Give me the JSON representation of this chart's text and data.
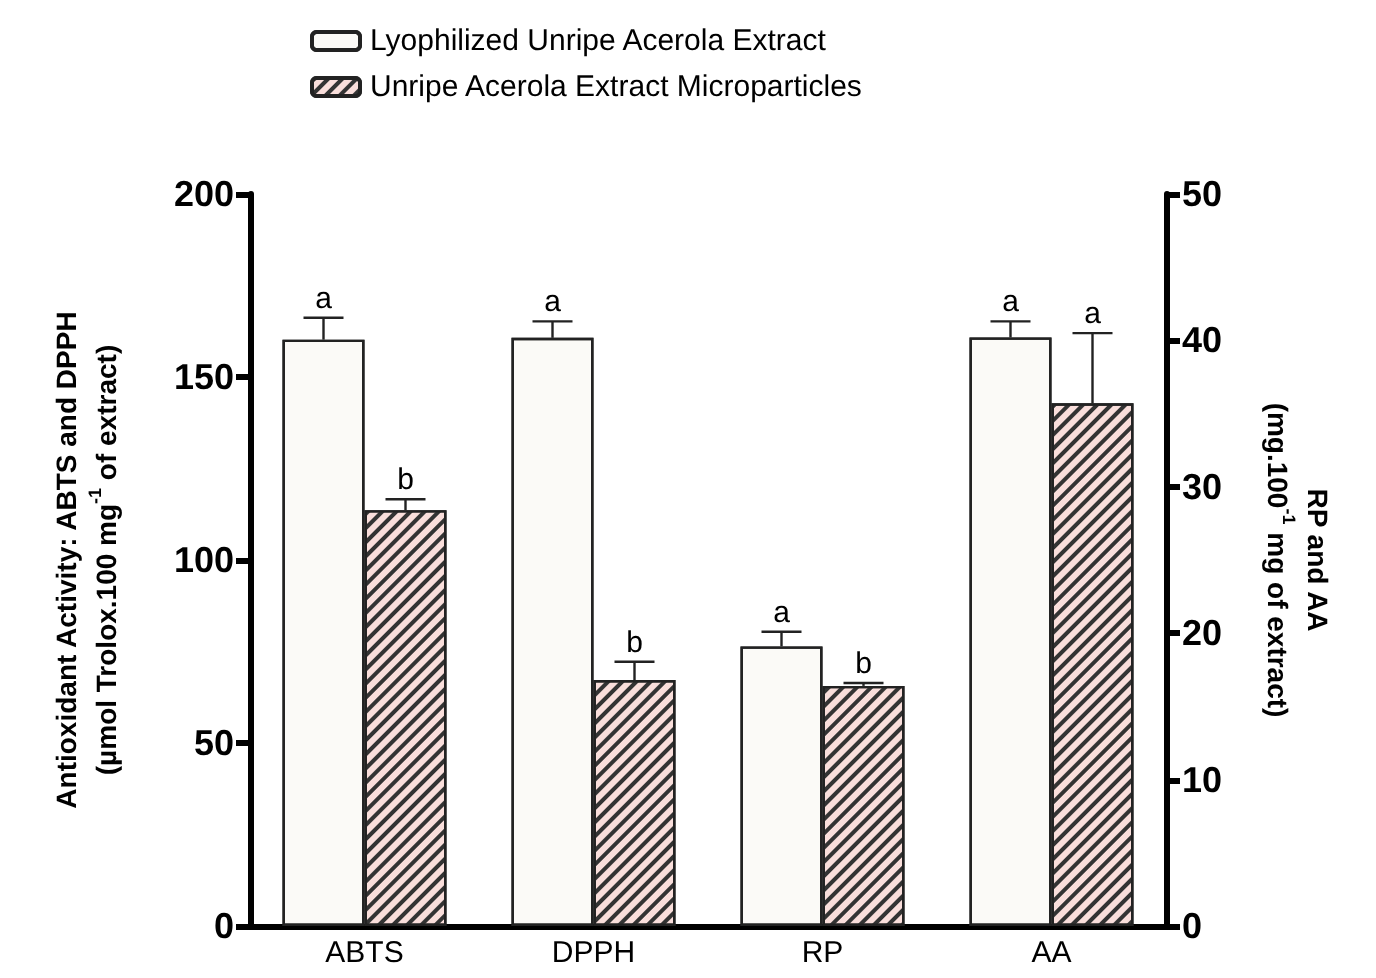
{
  "chart_data": {
    "type": "bar",
    "ylabel": "Antioxidant Activity: ABTS and DPPH\n(µmol Trolox.100 mg$^{-1}$ of extract)",
    "y2label": "RP and AA\n(mg.100$^{-1}$ mg of extract)",
    "categories": [
      "ABTS",
      "DPPH",
      "RP",
      "AA"
    ],
    "series": [
      {
        "name": "Lyophilized Unripe Acerola Extract",
        "color": "#fbfaf7",
        "values": [
          160.2,
          160.7,
          null,
          null
        ],
        "errors": [
          6,
          4.5,
          null,
          null
        ],
        "value_labels": [
          "a",
          "a",
          null,
          null
        ]
      },
      {
        "name": "Unripe Acerola Extract Microparticles",
        "color": "#f9dedb",
        "values": [
          113.6,
          67.2,
          null,
          null
        ],
        "errors": [
          3,
          5,
          null,
          null
        ],
        "value_labels": [
          "b",
          "b",
          null,
          null
        ]
      },
      {
        "axis": "y2",
        "color": "#fbfaf7",
        "values": [
          null,
          null,
          19.1,
          40.2
        ],
        "errors": [
          null,
          null,
          1,
          1.1
        ],
        "value_labels": [
          null,
          null,
          "a",
          "a"
        ]
      },
      {
        "axis": "y2",
        "color": "#f9dedb",
        "values": [
          null,
          null,
          16.4,
          35.7
        ],
        "errors": [
          null,
          null,
          0.2,
          4.8
        ],
        "value_labels": [
          null,
          null,
          "b",
          "a"
        ]
      }
    ],
    "ylim": [
      0,
      200
    ],
    "yticks": [
      0,
      50,
      100,
      150,
      200
    ],
    "y2lim": [
      0,
      50
    ],
    "y2ticks": [
      0,
      10,
      20,
      30,
      40,
      50
    ],
    "grid": false,
    "legend": "top"
  }
}
